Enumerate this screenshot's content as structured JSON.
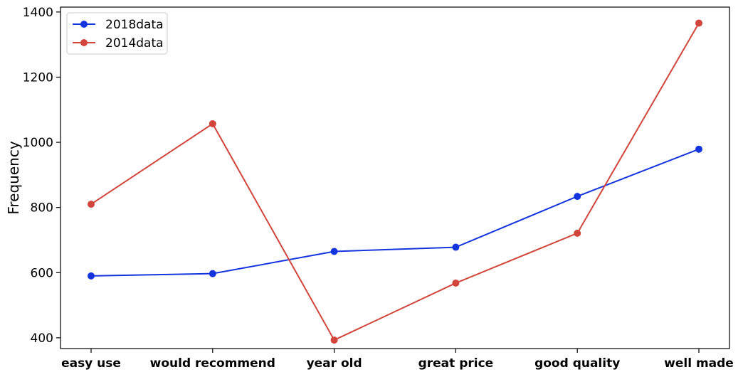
{
  "chart_data": {
    "type": "line",
    "title": "",
    "xlabel": "",
    "ylabel": "Frequency",
    "categories": [
      "easy use",
      "would recommend",
      "year old",
      "great price",
      "good quality",
      "well made"
    ],
    "series": [
      {
        "name": "2018data",
        "color": "#1434e0",
        "values": [
          590,
          597,
          665,
          678,
          834,
          979
        ]
      },
      {
        "name": "2014data",
        "color": "#d2453a",
        "values": [
          810,
          1057,
          393,
          568,
          721,
          1366
        ]
      }
    ],
    "ylim": [
      367,
      1415
    ],
    "yticks": [
      400,
      600,
      800,
      1000,
      1200,
      1400
    ],
    "grid": false,
    "legend_position": "top-left"
  }
}
